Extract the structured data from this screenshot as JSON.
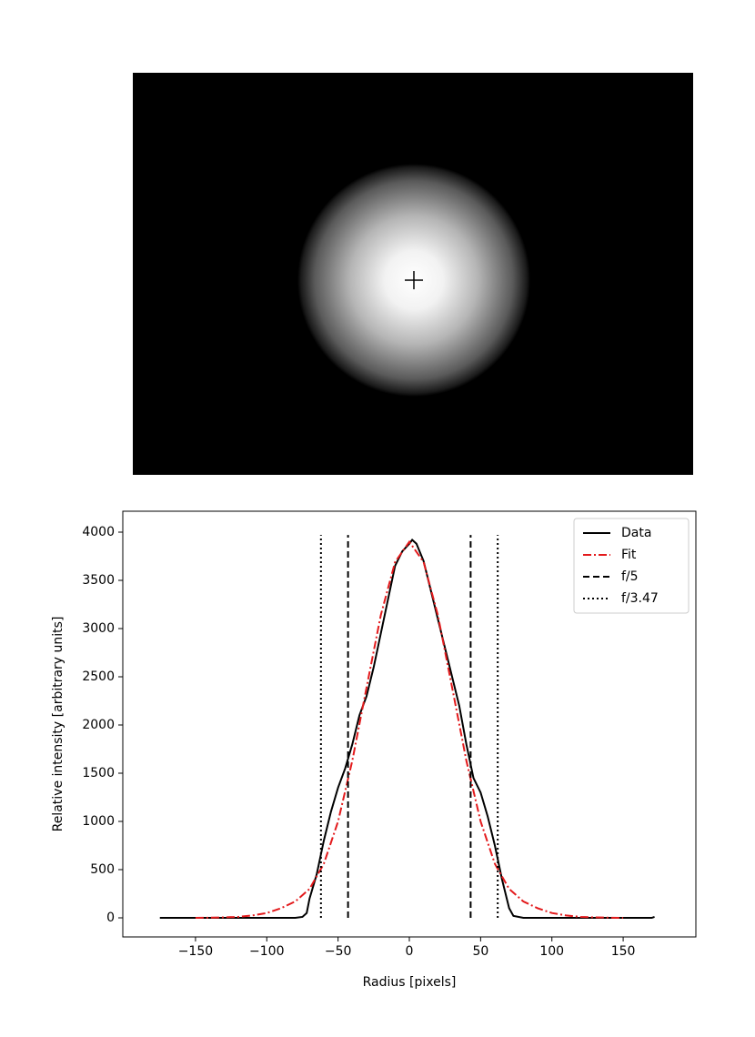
{
  "chart_data": {
    "type": "line",
    "xlabel": "Radius [pixels]",
    "ylabel": "Relative intensity [arbitrary units]",
    "xlim": [
      -201,
      201
    ],
    "ylim": [
      -198,
      4217
    ],
    "xticks": [
      {
        "value": -150,
        "label": "−150"
      },
      {
        "value": -100,
        "label": "−100"
      },
      {
        "value": -50,
        "label": "−50"
      },
      0,
      50,
      100,
      150
    ],
    "yticks": [
      0,
      500,
      1000,
      1500,
      2000,
      2500,
      3000,
      3500,
      4000
    ],
    "legend": "upper right",
    "series": [
      {
        "name": "Data",
        "color": "#000000",
        "linestyle": "solid",
        "x": [
          -175,
          -80,
          -75,
          -72,
          -70,
          -65,
          -60,
          -55,
          -50,
          -45,
          -40,
          -35,
          -30,
          -25,
          -20,
          -15,
          -10,
          -5,
          0,
          2,
          5,
          10,
          15,
          20,
          25,
          30,
          35,
          40,
          45,
          50,
          55,
          60,
          65,
          70,
          73,
          80,
          170,
          172
        ],
        "values": [
          0,
          0,
          10,
          50,
          200,
          450,
          800,
          1100,
          1350,
          1550,
          1800,
          2100,
          2300,
          2600,
          2950,
          3300,
          3650,
          3800,
          3880,
          3920,
          3880,
          3700,
          3400,
          3100,
          2800,
          2500,
          2200,
          1800,
          1450,
          1300,
          1050,
          750,
          400,
          100,
          20,
          0,
          0,
          10
        ]
      },
      {
        "name": "Fit",
        "color": "#e31a1c",
        "linestyle": "dashdot",
        "x": [
          -150,
          -140,
          -130,
          -120,
          -110,
          -100,
          -90,
          -80,
          -70,
          -60,
          -50,
          -40,
          -30,
          -20,
          -10,
          0,
          10,
          20,
          30,
          40,
          50,
          60,
          70,
          80,
          90,
          100,
          110,
          120,
          130,
          140,
          150
        ],
        "values": [
          0,
          2,
          5,
          10,
          25,
          50,
          100,
          170,
          300,
          560,
          1000,
          1630,
          2390,
          3140,
          3690,
          3900,
          3690,
          3140,
          2390,
          1630,
          1000,
          560,
          300,
          170,
          100,
          50,
          25,
          10,
          5,
          2,
          0
        ]
      },
      {
        "name": "f/5",
        "color": "#000000",
        "linestyle": "dashed",
        "x": [
          -43,
          -43,
          null,
          43,
          43
        ],
        "values": [
          0,
          3970,
          null,
          0,
          3970
        ]
      },
      {
        "name": "f/3.47",
        "color": "#000000",
        "linestyle": "dotted",
        "x": [
          -62,
          -62,
          null,
          62,
          62
        ],
        "values": [
          0,
          3970,
          null,
          0,
          3970
        ]
      }
    ]
  }
}
